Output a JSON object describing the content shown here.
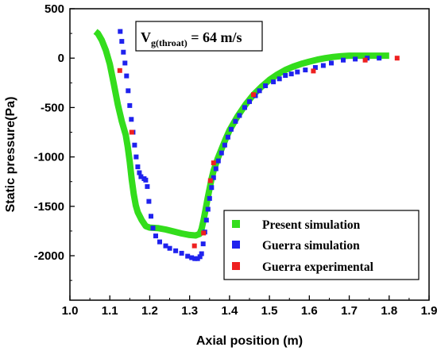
{
  "chart_data": {
    "type": "scatter",
    "xlabel": "Axial position (m)",
    "ylabel": "Static pressure(Pa)",
    "xlim": [
      1.0,
      1.9
    ],
    "ylim": [
      -2450,
      500
    ],
    "x_ticks": [
      "1.0",
      "1.1",
      "1.2",
      "1.3",
      "1.4",
      "1.5",
      "1.6",
      "1.7",
      "1.8",
      "1.9"
    ],
    "y_ticks": [
      "500",
      "0",
      "-500",
      "-1000",
      "-1500",
      "-2000"
    ],
    "annotation": {
      "main": "V",
      "subscript": "g(throat)",
      "value": " = 64 m/s"
    },
    "legend_position": "lower-right",
    "series": [
      {
        "name": "Present simulation",
        "color": "#33dd1c",
        "marker": "thick-line",
        "points": [
          [
            1.064,
            270
          ],
          [
            1.07,
            250
          ],
          [
            1.08,
            180
          ],
          [
            1.09,
            80
          ],
          [
            1.1,
            -60
          ],
          [
            1.11,
            -260
          ],
          [
            1.12,
            -470
          ],
          [
            1.13,
            -640
          ],
          [
            1.14,
            -780
          ],
          [
            1.145,
            -900
          ],
          [
            1.15,
            -1050
          ],
          [
            1.155,
            -1230
          ],
          [
            1.16,
            -1380
          ],
          [
            1.165,
            -1490
          ],
          [
            1.17,
            -1560
          ],
          [
            1.18,
            -1640
          ],
          [
            1.19,
            -1700
          ],
          [
            1.2,
            -1715
          ],
          [
            1.22,
            -1720
          ],
          [
            1.24,
            -1735
          ],
          [
            1.26,
            -1755
          ],
          [
            1.28,
            -1775
          ],
          [
            1.3,
            -1790
          ],
          [
            1.315,
            -1795
          ],
          [
            1.325,
            -1780
          ],
          [
            1.33,
            -1730
          ],
          [
            1.335,
            -1640
          ],
          [
            1.34,
            -1530
          ],
          [
            1.345,
            -1420
          ],
          [
            1.35,
            -1320
          ],
          [
            1.355,
            -1220
          ],
          [
            1.36,
            -1140
          ],
          [
            1.37,
            -1020
          ],
          [
            1.38,
            -920
          ],
          [
            1.39,
            -820
          ],
          [
            1.4,
            -730
          ],
          [
            1.42,
            -590
          ],
          [
            1.44,
            -470
          ],
          [
            1.46,
            -370
          ],
          [
            1.48,
            -290
          ],
          [
            1.5,
            -220
          ],
          [
            1.52,
            -165
          ],
          [
            1.54,
            -120
          ],
          [
            1.56,
            -85
          ],
          [
            1.58,
            -58
          ],
          [
            1.6,
            -35
          ],
          [
            1.62,
            -15
          ],
          [
            1.64,
            0
          ],
          [
            1.66,
            12
          ],
          [
            1.68,
            20
          ],
          [
            1.7,
            25
          ],
          [
            1.73,
            25
          ],
          [
            1.76,
            25
          ],
          [
            1.8,
            25
          ]
        ]
      },
      {
        "name": "Guerra simulation",
        "color": "#1f22ee",
        "marker": "square",
        "points": [
          [
            1.126,
            270
          ],
          [
            1.13,
            170
          ],
          [
            1.134,
            60
          ],
          [
            1.138,
            -50
          ],
          [
            1.142,
            -180
          ],
          [
            1.146,
            -330
          ],
          [
            1.15,
            -480
          ],
          [
            1.154,
            -620
          ],
          [
            1.158,
            -750
          ],
          [
            1.162,
            -880
          ],
          [
            1.166,
            -1000
          ],
          [
            1.17,
            -1100
          ],
          [
            1.174,
            -1160
          ],
          [
            1.178,
            -1200
          ],
          [
            1.186,
            -1220
          ],
          [
            1.19,
            -1235
          ],
          [
            1.194,
            -1300
          ],
          [
            1.198,
            -1450
          ],
          [
            1.203,
            -1600
          ],
          [
            1.208,
            -1720
          ],
          [
            1.215,
            -1800
          ],
          [
            1.225,
            -1860
          ],
          [
            1.24,
            -1900
          ],
          [
            1.25,
            -1925
          ],
          [
            1.265,
            -1950
          ],
          [
            1.28,
            -1975
          ],
          [
            1.295,
            -2005
          ],
          [
            1.305,
            -2020
          ],
          [
            1.313,
            -2030
          ],
          [
            1.32,
            -2030
          ],
          [
            1.326,
            -2010
          ],
          [
            1.33,
            -1980
          ],
          [
            1.334,
            -1880
          ],
          [
            1.338,
            -1760
          ],
          [
            1.342,
            -1640
          ],
          [
            1.346,
            -1530
          ],
          [
            1.35,
            -1420
          ],
          [
            1.355,
            -1310
          ],
          [
            1.36,
            -1210
          ],
          [
            1.366,
            -1120
          ],
          [
            1.372,
            -1040
          ],
          [
            1.38,
            -960
          ],
          [
            1.388,
            -880
          ],
          [
            1.396,
            -800
          ],
          [
            1.404,
            -720
          ],
          [
            1.415,
            -640
          ],
          [
            1.425,
            -580
          ],
          [
            1.438,
            -500
          ],
          [
            1.45,
            -440
          ],
          [
            1.465,
            -380
          ],
          [
            1.475,
            -330
          ],
          [
            1.49,
            -280
          ],
          [
            1.51,
            -240
          ],
          [
            1.525,
            -210
          ],
          [
            1.54,
            -175
          ],
          [
            1.555,
            -160
          ],
          [
            1.57,
            -140
          ],
          [
            1.59,
            -120
          ],
          [
            1.615,
            -95
          ],
          [
            1.635,
            -75
          ],
          [
            1.655,
            -50
          ],
          [
            1.685,
            -20
          ],
          [
            1.715,
            -10
          ],
          [
            1.745,
            0
          ],
          [
            1.775,
            0
          ]
        ]
      },
      {
        "name": "Guerra experimental",
        "color": "#ee2020",
        "marker": "square",
        "points": [
          [
            1.125,
            -125
          ],
          [
            1.155,
            -750
          ],
          [
            1.312,
            -1900
          ],
          [
            1.335,
            -1770
          ],
          [
            1.352,
            -1240
          ],
          [
            1.36,
            -1060
          ],
          [
            1.46,
            -370
          ],
          [
            1.61,
            -130
          ],
          [
            1.74,
            -20
          ],
          [
            1.82,
            0
          ]
        ]
      }
    ]
  }
}
